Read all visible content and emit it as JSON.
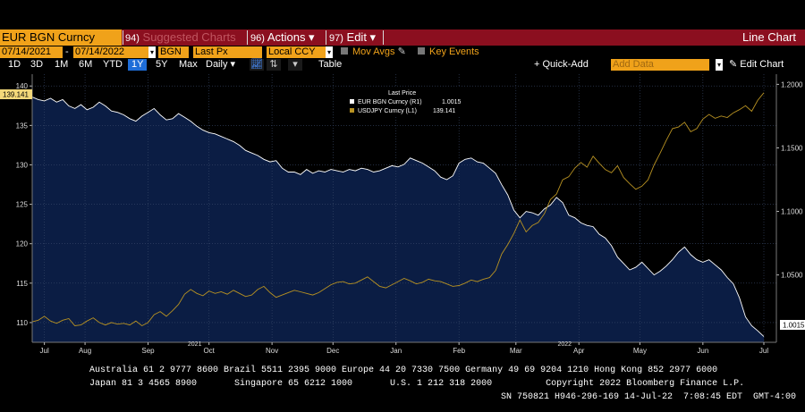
{
  "toolbar": {
    "ticker": "EUR BGN Curncy",
    "suggested_num": "94)",
    "suggested_label": "Suggested Charts",
    "actions_num": "96)",
    "actions_label": "Actions ▾",
    "edit_num": "97)",
    "edit_label": "Edit ▾",
    "chart_type": "Line Chart"
  },
  "settings": {
    "start_date": "07/14/2021",
    "end_date": "07/14/2022",
    "source": "BGN",
    "field": "Last Px",
    "currency": "Local CCY",
    "mov_avgs": "Mov Avgs",
    "key_events": "Key Events"
  },
  "periods": [
    "1D",
    "3D",
    "1M",
    "6M",
    "YTD",
    "1Y",
    "5Y",
    "Max"
  ],
  "active_period": "1Y",
  "frequency": "Daily",
  "table_label": "Table",
  "quick_add": "+ Quick-Add",
  "add_data_placeholder": "Add Data",
  "edit_chart": "✎ Edit Chart",
  "chart_data": {
    "type": "line",
    "legend_title": "Last Price",
    "legend_placement": "top-center",
    "series": [
      {
        "name": "EUR BGN Curncy  (R1)",
        "last": "1.0015",
        "axis": "right",
        "color": "#ffffff",
        "fill": "#0b1d44",
        "points": [
          [
            0,
            1.19
          ],
          [
            3,
            1.188
          ],
          [
            6,
            1.187
          ],
          [
            9,
            1.189
          ],
          [
            12,
            1.186
          ],
          [
            15,
            1.188
          ],
          [
            18,
            1.183
          ],
          [
            21,
            1.181
          ],
          [
            24,
            1.184
          ],
          [
            27,
            1.18
          ],
          [
            30,
            1.182
          ],
          [
            33,
            1.186
          ],
          [
            36,
            1.183
          ],
          [
            39,
            1.179
          ],
          [
            42,
            1.178
          ],
          [
            45,
            1.176
          ],
          [
            48,
            1.173
          ],
          [
            51,
            1.171
          ],
          [
            54,
            1.175
          ],
          [
            57,
            1.178
          ],
          [
            60,
            1.181
          ],
          [
            63,
            1.176
          ],
          [
            66,
            1.172
          ],
          [
            69,
            1.173
          ],
          [
            72,
            1.177
          ],
          [
            75,
            1.174
          ],
          [
            78,
            1.171
          ],
          [
            81,
            1.167
          ],
          [
            84,
            1.164
          ],
          [
            87,
            1.162
          ],
          [
            90,
            1.161
          ],
          [
            93,
            1.159
          ],
          [
            96,
            1.157
          ],
          [
            99,
            1.155
          ],
          [
            102,
            1.152
          ],
          [
            105,
            1.148
          ],
          [
            108,
            1.146
          ],
          [
            111,
            1.144
          ],
          [
            114,
            1.141
          ],
          [
            117,
            1.139
          ],
          [
            120,
            1.14
          ],
          [
            123,
            1.134
          ],
          [
            126,
            1.131
          ],
          [
            129,
            1.131
          ],
          [
            132,
            1.129
          ],
          [
            135,
            1.133
          ],
          [
            138,
            1.13
          ],
          [
            141,
            1.132
          ],
          [
            144,
            1.131
          ],
          [
            147,
            1.133
          ],
          [
            150,
            1.132
          ],
          [
            153,
            1.131
          ],
          [
            156,
            1.133
          ],
          [
            159,
            1.132
          ],
          [
            162,
            1.134
          ],
          [
            165,
            1.133
          ],
          [
            168,
            1.131
          ],
          [
            171,
            1.132
          ],
          [
            174,
            1.134
          ],
          [
            177,
            1.136
          ],
          [
            180,
            1.135
          ],
          [
            183,
            1.137
          ],
          [
            186,
            1.142
          ],
          [
            189,
            1.14
          ],
          [
            192,
            1.138
          ],
          [
            195,
            1.135
          ],
          [
            198,
            1.132
          ],
          [
            201,
            1.127
          ],
          [
            204,
            1.125
          ],
          [
            207,
            1.128
          ],
          [
            210,
            1.138
          ],
          [
            213,
            1.141
          ],
          [
            216,
            1.142
          ],
          [
            219,
            1.139
          ],
          [
            222,
            1.138
          ],
          [
            225,
            1.134
          ],
          [
            228,
            1.13
          ],
          [
            231,
            1.121
          ],
          [
            234,
            1.113
          ],
          [
            237,
            1.101
          ],
          [
            240,
            1.095
          ],
          [
            243,
            1.1
          ],
          [
            246,
            1.099
          ],
          [
            249,
            1.097
          ],
          [
            252,
            1.102
          ],
          [
            255,
            1.105
          ],
          [
            258,
            1.111
          ],
          [
            261,
            1.107
          ],
          [
            264,
            1.097
          ],
          [
            267,
            1.095
          ],
          [
            270,
            1.091
          ],
          [
            273,
            1.089
          ],
          [
            276,
            1.088
          ],
          [
            279,
            1.082
          ],
          [
            282,
            1.079
          ],
          [
            285,
            1.073
          ],
          [
            288,
            1.064
          ],
          [
            291,
            1.059
          ],
          [
            294,
            1.054
          ],
          [
            297,
            1.056
          ],
          [
            300,
            1.06
          ],
          [
            303,
            1.055
          ],
          [
            306,
            1.05
          ],
          [
            309,
            1.053
          ],
          [
            312,
            1.057
          ],
          [
            315,
            1.062
          ],
          [
            318,
            1.068
          ],
          [
            321,
            1.072
          ],
          [
            324,
            1.066
          ],
          [
            327,
            1.062
          ],
          [
            330,
            1.06
          ],
          [
            333,
            1.062
          ],
          [
            336,
            1.058
          ],
          [
            339,
            1.054
          ],
          [
            342,
            1.048
          ],
          [
            345,
            1.043
          ],
          [
            348,
            1.032
          ],
          [
            351,
            1.017
          ],
          [
            354,
            1.01
          ],
          [
            357,
            1.006
          ],
          [
            360,
            1.0015
          ]
        ]
      },
      {
        "name": "USDJPY Curncy  (L1)",
        "last": "139.141",
        "axis": "left",
        "color": "#b89222",
        "points": [
          [
            0,
            110.1
          ],
          [
            3,
            110.3
          ],
          [
            6,
            110.8
          ],
          [
            9,
            110.2
          ],
          [
            12,
            109.9
          ],
          [
            15,
            110.3
          ],
          [
            18,
            110.5
          ],
          [
            21,
            109.6
          ],
          [
            24,
            109.7
          ],
          [
            27,
            110.2
          ],
          [
            30,
            110.6
          ],
          [
            33,
            110.0
          ],
          [
            36,
            109.7
          ],
          [
            39,
            110.0
          ],
          [
            42,
            109.8
          ],
          [
            45,
            109.9
          ],
          [
            48,
            109.7
          ],
          [
            51,
            110.2
          ],
          [
            54,
            109.6
          ],
          [
            57,
            110.0
          ],
          [
            60,
            111.0
          ],
          [
            63,
            111.4
          ],
          [
            66,
            110.8
          ],
          [
            69,
            111.5
          ],
          [
            72,
            112.3
          ],
          [
            75,
            113.6
          ],
          [
            78,
            114.2
          ],
          [
            81,
            113.7
          ],
          [
            84,
            113.4
          ],
          [
            87,
            114.0
          ],
          [
            90,
            113.7
          ],
          [
            93,
            113.9
          ],
          [
            96,
            113.6
          ],
          [
            99,
            114.1
          ],
          [
            102,
            113.7
          ],
          [
            105,
            113.3
          ],
          [
            108,
            113.5
          ],
          [
            111,
            114.2
          ],
          [
            114,
            114.6
          ],
          [
            117,
            113.8
          ],
          [
            120,
            113.2
          ],
          [
            123,
            113.5
          ],
          [
            126,
            113.8
          ],
          [
            129,
            114.1
          ],
          [
            132,
            113.9
          ],
          [
            135,
            113.7
          ],
          [
            138,
            113.5
          ],
          [
            141,
            113.8
          ],
          [
            144,
            114.3
          ],
          [
            147,
            114.8
          ],
          [
            150,
            115.1
          ],
          [
            153,
            115.2
          ],
          [
            156,
            114.9
          ],
          [
            159,
            115.0
          ],
          [
            162,
            115.4
          ],
          [
            165,
            115.8
          ],
          [
            168,
            115.2
          ],
          [
            171,
            114.6
          ],
          [
            174,
            114.4
          ],
          [
            177,
            114.8
          ],
          [
            180,
            115.2
          ],
          [
            183,
            115.6
          ],
          [
            186,
            115.3
          ],
          [
            189,
            114.9
          ],
          [
            192,
            115.1
          ],
          [
            195,
            115.5
          ],
          [
            198,
            115.3
          ],
          [
            201,
            115.2
          ],
          [
            204,
            114.9
          ],
          [
            207,
            114.6
          ],
          [
            210,
            114.7
          ],
          [
            213,
            115.0
          ],
          [
            216,
            115.4
          ],
          [
            219,
            115.2
          ],
          [
            222,
            115.5
          ],
          [
            225,
            115.7
          ],
          [
            228,
            116.6
          ],
          [
            231,
            118.7
          ],
          [
            234,
            119.9
          ],
          [
            237,
            121.3
          ],
          [
            240,
            123.0
          ],
          [
            243,
            121.5
          ],
          [
            246,
            122.3
          ],
          [
            249,
            122.7
          ],
          [
            252,
            123.8
          ],
          [
            255,
            125.6
          ],
          [
            258,
            126.3
          ],
          [
            261,
            128.1
          ],
          [
            264,
            128.5
          ],
          [
            267,
            129.6
          ],
          [
            270,
            130.3
          ],
          [
            273,
            129.7
          ],
          [
            276,
            131.1
          ],
          [
            279,
            130.2
          ],
          [
            282,
            129.4
          ],
          [
            285,
            129.0
          ],
          [
            288,
            129.9
          ],
          [
            291,
            128.4
          ],
          [
            294,
            127.6
          ],
          [
            297,
            126.9
          ],
          [
            300,
            127.3
          ],
          [
            303,
            128.1
          ],
          [
            306,
            130.0
          ],
          [
            309,
            131.5
          ],
          [
            312,
            133.1
          ],
          [
            315,
            134.6
          ],
          [
            318,
            134.8
          ],
          [
            321,
            135.4
          ],
          [
            324,
            134.2
          ],
          [
            327,
            134.6
          ],
          [
            330,
            135.8
          ],
          [
            333,
            136.4
          ],
          [
            336,
            135.9
          ],
          [
            339,
            136.2
          ],
          [
            342,
            136.0
          ],
          [
            345,
            136.6
          ],
          [
            348,
            137.0
          ],
          [
            351,
            137.5
          ],
          [
            354,
            136.8
          ],
          [
            357,
            138.2
          ],
          [
            360,
            139.141
          ]
        ]
      }
    ],
    "y_left": {
      "ticks": [
        110,
        115,
        120,
        125,
        130,
        135,
        140
      ],
      "range": [
        107.5,
        141.5
      ]
    },
    "y_right": {
      "ticks": [
        "1.2000",
        "1.1500",
        "1.1000",
        "1.0500"
      ],
      "tick_values": [
        1.2,
        1.15,
        1.1,
        1.05
      ],
      "range": [
        0.997,
        1.208
      ]
    },
    "x_range": [
      0,
      360
    ],
    "x_ticks": [
      {
        "label": "Jul",
        "x": 6
      },
      {
        "label": "Aug",
        "x": 26
      },
      {
        "label": "Sep",
        "x": 57
      },
      {
        "label": "Oct",
        "x": 87
      },
      {
        "label": "Nov",
        "x": 118
      },
      {
        "label": "Dec",
        "x": 148
      },
      {
        "label": "Jan",
        "x": 179
      },
      {
        "label": "Feb",
        "x": 210
      },
      {
        "label": "Mar",
        "x": 238
      },
      {
        "label": "Apr",
        "x": 269
      },
      {
        "label": "May",
        "x": 299
      },
      {
        "label": "Jun",
        "x": 330
      },
      {
        "label": "Jul",
        "x": 360
      }
    ],
    "year_labels": [
      {
        "label": "2021",
        "x": 87
      },
      {
        "label": "2022",
        "x": 269
      }
    ],
    "left_last_label": "139.141",
    "right_last_label": "1.0015"
  },
  "footer": {
    "line1": "Australia 61 2 9777 8600 Brazil 5511 2395 9000 Europe 44 20 7330 7500 Germany 49 69 9204 1210 Hong Kong 852 2977 6000",
    "line2": "Japan 81 3 4565 8900       Singapore 65 6212 1000       U.S. 1 212 318 2000          Copyright 2022 Bloomberg Finance L.P.",
    "line3": "SN 750821 H946-296-169 14-Jul-22  7:08:45 EDT  GMT-4:00"
  }
}
